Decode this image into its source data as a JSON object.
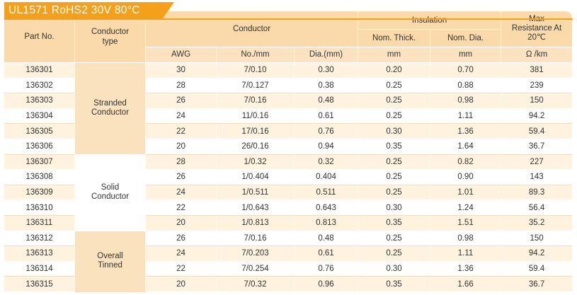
{
  "title": "UL1571  RoHS2  30V  80°C",
  "headers": {
    "part_no": "Part No.",
    "conductor_type": "Conductor type",
    "conductor": "Conductor",
    "insulation": "Insulation",
    "max_resistance": "Max Resistance At 20℃",
    "awg": "AWG",
    "no_mm": "No./mm",
    "dia_mm": "Dia.(mm)",
    "nom_thick": "Nom. Thick.",
    "nom_dia": "Nom. Dia.",
    "unit_thick": "mm",
    "unit_dia": "mm",
    "unit_res": "Ω /km"
  },
  "groups": [
    {
      "type": "Stranded Conductor",
      "rows": [
        {
          "part": "136301",
          "awg": "30",
          "no": "7/0.10",
          "dia": "0.30",
          "thick": "0.20",
          "nomdia": "0.70",
          "res": "381"
        },
        {
          "part": "136302",
          "awg": "28",
          "no": "7/0.127",
          "dia": "0.38",
          "thick": "0.25",
          "nomdia": "0.88",
          "res": "239"
        },
        {
          "part": "136303",
          "awg": "26",
          "no": "7/0.16",
          "dia": "0.48",
          "thick": "0.25",
          "nomdia": "0.98",
          "res": "150"
        },
        {
          "part": "136304",
          "awg": "24",
          "no": "11/0.16",
          "dia": "0.61",
          "thick": "0.25",
          "nomdia": "1.11",
          "res": "94.2"
        },
        {
          "part": "136305",
          "awg": "22",
          "no": "17/0.16",
          "dia": "0.76",
          "thick": "0.30",
          "nomdia": "1.36",
          "res": "59.4"
        },
        {
          "part": "136306",
          "awg": "20",
          "no": "26/0.16",
          "dia": "0.94",
          "thick": "0.35",
          "nomdia": "1.64",
          "res": "36.7"
        }
      ]
    },
    {
      "type": "Solid Conductor",
      "rows": [
        {
          "part": "136307",
          "awg": "28",
          "no": "1/0.32",
          "dia": "0.32",
          "thick": "0.25",
          "nomdia": "0.82",
          "res": "227"
        },
        {
          "part": "136308",
          "awg": "26",
          "no": "1/0.404",
          "dia": "0.404",
          "thick": "0.25",
          "nomdia": "0.90",
          "res": "143"
        },
        {
          "part": "136309",
          "awg": "24",
          "no": "1/0.511",
          "dia": "0.511",
          "thick": "0.25",
          "nomdia": "1.01",
          "res": "89.3"
        },
        {
          "part": "136310",
          "awg": "22",
          "no": "1/0.643",
          "dia": "0.643",
          "thick": "0.30",
          "nomdia": "1.24",
          "res": "56.4"
        },
        {
          "part": "136311",
          "awg": "20",
          "no": "1/0.813",
          "dia": "0.813",
          "thick": "0.35",
          "nomdia": "1.51",
          "res": "35.2"
        }
      ]
    },
    {
      "type": "Overall Tinned",
      "rows": [
        {
          "part": "136312",
          "awg": "26",
          "no": "7/0.16",
          "dia": "0.48",
          "thick": "0.25",
          "nomdia": "0.98",
          "res": "150"
        },
        {
          "part": "136313",
          "awg": "24",
          "no": "7/0.203",
          "dia": "0.61",
          "thick": "0.25",
          "nomdia": "1.11",
          "res": "94.2"
        },
        {
          "part": "136314",
          "awg": "22",
          "no": "7/0.254",
          "dia": "0.76",
          "thick": "0.30",
          "nomdia": "1.36",
          "res": "59.4"
        },
        {
          "part": "136315",
          "awg": "20",
          "no": "7/0.32",
          "dia": "0.96",
          "thick": "0.35",
          "nomdia": "1.66",
          "res": "36.7"
        }
      ]
    }
  ]
}
